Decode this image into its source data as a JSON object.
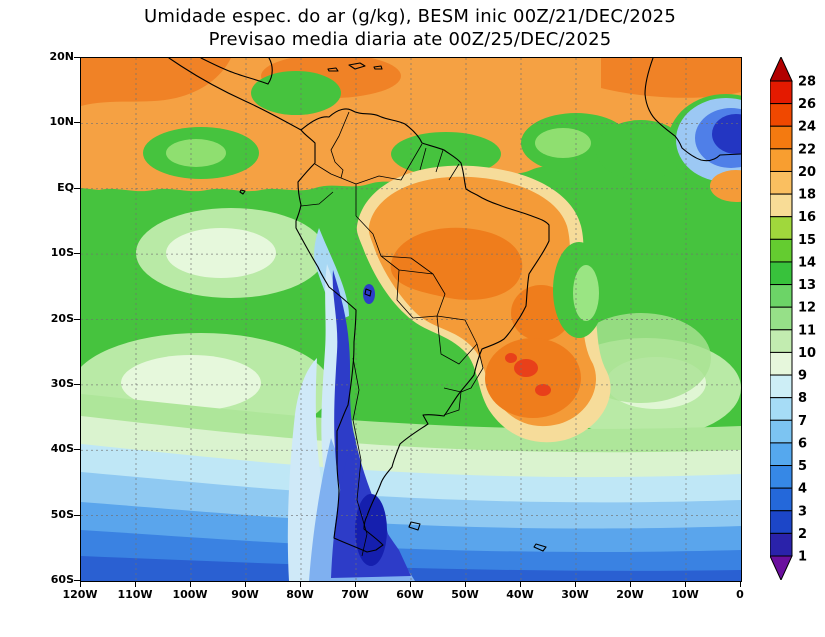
{
  "title": {
    "line1": "Umidade espec. do ar (g/kg), BESM inic 00Z/21/DEC/2025",
    "line2": "Previsao media diaria ate 00Z/25/DEC/2025"
  },
  "axes": {
    "lat_labels": [
      "20N",
      "10N",
      "EQ",
      "10S",
      "20S",
      "30S",
      "40S",
      "50S",
      "60S"
    ],
    "lon_labels": [
      "120W",
      "110W",
      "100W",
      "90W",
      "80W",
      "70W",
      "60W",
      "50W",
      "40W",
      "30W",
      "20W",
      "10W",
      "0"
    ]
  },
  "colorbar": {
    "levels": [
      "28",
      "26",
      "24",
      "22",
      "20",
      "18",
      "16",
      "15",
      "14",
      "13",
      "12",
      "11",
      "10",
      "9",
      "8",
      "7",
      "6",
      "5",
      "4",
      "3",
      "2",
      "1"
    ],
    "colors_top_to_bottom": [
      "#b20000",
      "#e41a00",
      "#f04800",
      "#f47a10",
      "#f89e30",
      "#fabf60",
      "#f8dc96",
      "#a0d83c",
      "#64cc30",
      "#38c23c",
      "#6cd467",
      "#96e088",
      "#c2ecb0",
      "#e6f7dc",
      "#cdeef6",
      "#a6dcf6",
      "#7cc4f2",
      "#55a8ee",
      "#3688e6",
      "#2468da",
      "#1c46c8",
      "#2a22aa",
      "#6a0f9e"
    ]
  },
  "chart_data": {
    "type": "heatmap",
    "title": "Umidade espec. do ar (g/kg), BESM inic 00Z/21/DEC/2025",
    "subtitle": "Previsao media diaria ate 00Z/25/DEC/2025",
    "units": "g/kg",
    "model": "BESM",
    "init_time": "00Z/21/DEC/2025",
    "valid_through": "00Z/25/DEC/2025",
    "lon_range": [
      "120W",
      "0"
    ],
    "lat_range": [
      "20N",
      "60S"
    ],
    "grid_step_deg": 10,
    "grid_lines": "dotted gray every 10 degrees",
    "legend_position": "right vertical colorbar with end arrows",
    "contour_levels": [
      1,
      2,
      3,
      4,
      5,
      6,
      7,
      8,
      9,
      10,
      11,
      12,
      13,
      14,
      15,
      16,
      18,
      20,
      22,
      24,
      26,
      28
    ],
    "palette_top_to_bottom": [
      "#b20000",
      "#e41a00",
      "#f04800",
      "#f47a10",
      "#f89e30",
      "#fabf60",
      "#f8dc96",
      "#a0d83c",
      "#64cc30",
      "#38c23c",
      "#6cd467",
      "#96e088",
      "#c2ecb0",
      "#e6f7dc",
      "#cdeef6",
      "#a6dcf6",
      "#7cc4f2",
      "#55a8ee",
      "#3688e6",
      "#2468da",
      "#1c46c8",
      "#2a22aa",
      "#6a0f9e"
    ],
    "field_estimates": [
      {
        "region": "Tropical band 0-15N (Pacific and Atlantic)",
        "approx_g_per_kg": "16-20"
      },
      {
        "region": "Amazon basin interior",
        "approx_g_per_kg": "18-22"
      },
      {
        "region": "Central and Southeast Brazil cores",
        "approx_g_per_kg": "22-26"
      },
      {
        "region": "Northeast Brazil coast",
        "approx_g_per_kg": "13-16"
      },
      {
        "region": "Andes cordillera strip",
        "approx_g_per_kg": "2-8"
      },
      {
        "region": "Subtropical South Pacific 25-35S",
        "approx_g_per_kg": "9-12"
      },
      {
        "region": "Subtropical South Atlantic 25-35S",
        "approx_g_per_kg": "9-12"
      },
      {
        "region": "Southern Ocean 40-50S",
        "approx_g_per_kg": "4-8"
      },
      {
        "region": "Southern Ocean 50-60S",
        "approx_g_per_kg": "1-5"
      },
      {
        "region": "Patagonia and southern Chile",
        "approx_g_per_kg": "1-4"
      },
      {
        "region": "West Africa / Sahara corner",
        "approx_g_per_kg": "2-6"
      },
      {
        "region": "Mid-latitude ocean background",
        "approx_g_per_kg": "12-15"
      }
    ]
  }
}
